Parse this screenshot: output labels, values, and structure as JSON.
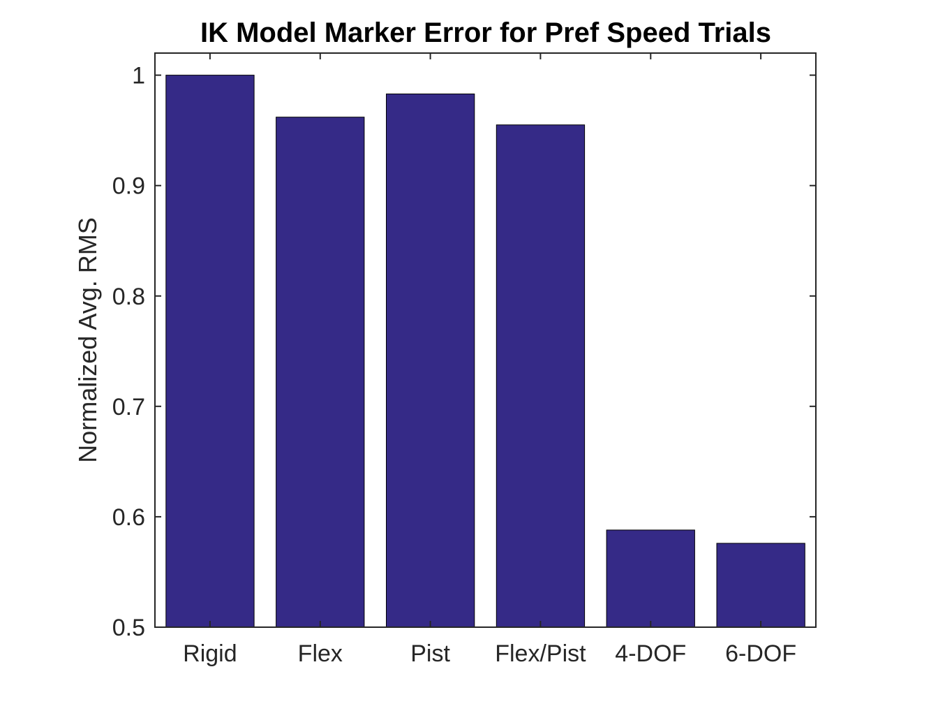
{
  "chart_data": {
    "type": "bar",
    "title": "IK Model Marker Error for Pref Speed Trials",
    "xlabel": "",
    "ylabel": "Normalized Avg. RMS",
    "categories": [
      "Rigid",
      "Flex",
      "Pist",
      "Flex/Pist",
      "4-DOF",
      "6-DOF"
    ],
    "values": [
      1.0,
      0.962,
      0.983,
      0.955,
      0.588,
      0.576
    ],
    "ylim": [
      0.5,
      1.02
    ],
    "yticks": [
      0.5,
      0.6,
      0.7,
      0.8,
      0.9,
      1.0
    ],
    "ytick_labels": [
      "0.5",
      "0.6",
      "0.7",
      "0.8",
      "0.9",
      "1"
    ],
    "bar_color": "#352a87",
    "grid": false,
    "legend": "none"
  }
}
